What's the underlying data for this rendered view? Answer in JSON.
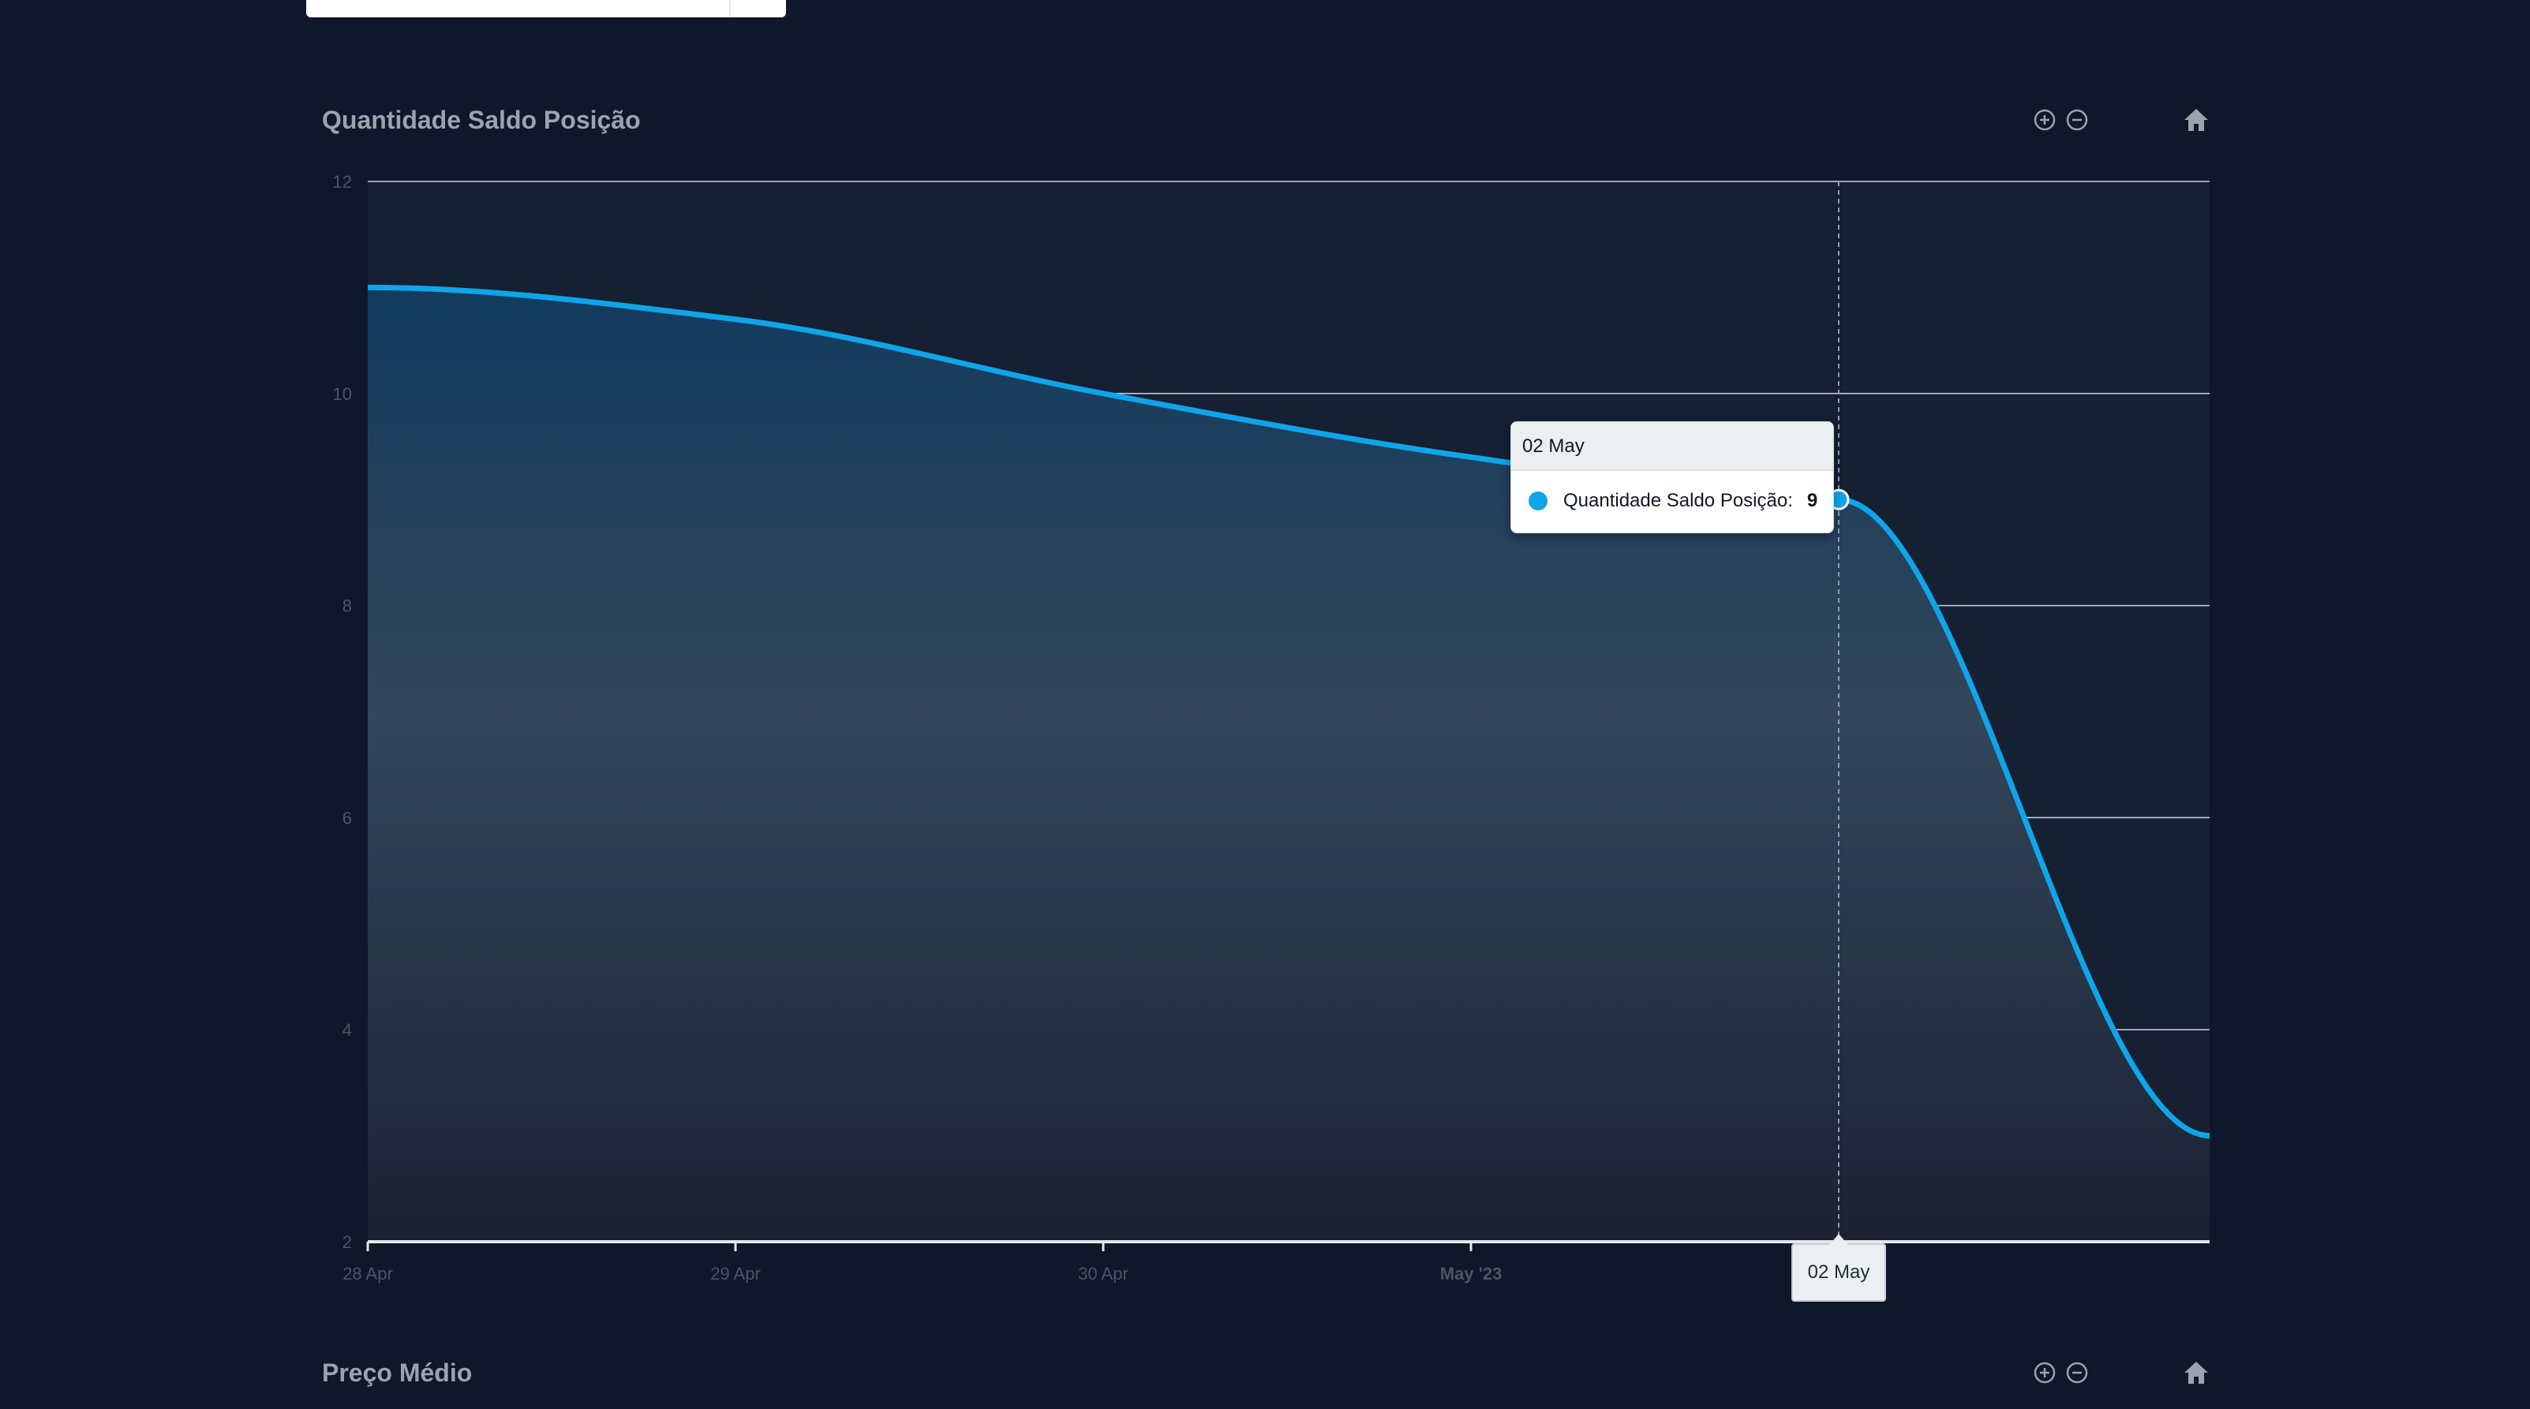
{
  "charts": [
    {
      "title": "Quantidade Saldo Posição",
      "toolbar": {
        "zoom_in_icon": "zoom-in-icon",
        "zoom_out_icon": "zoom-out-icon",
        "reset_icon": "home-icon"
      }
    },
    {
      "title": "Preço Médio",
      "toolbar": {
        "zoom_in_icon": "zoom-in-icon",
        "zoom_out_icon": "zoom-out-icon",
        "reset_icon": "home-icon"
      }
    }
  ],
  "colors": {
    "background": "#0f172a",
    "series": "#0ea5e9",
    "gridline": "#cbd5e1",
    "axis_text": "#4b5563",
    "title": "#9ca3af"
  },
  "chart_data": {
    "type": "area",
    "title": "Quantidade Saldo Posição",
    "xlabel": "",
    "ylabel": "",
    "x": [
      "2023-04-28",
      "2023-04-29",
      "2023-04-30",
      "2023-05-01",
      "2023-05-02",
      "2023-05-03"
    ],
    "x_tick_labels": [
      "28 Apr",
      "29 Apr",
      "30 Apr",
      "May '23",
      ""
    ],
    "y_ticks": [
      2,
      4,
      6,
      8,
      10,
      12
    ],
    "ylim": [
      2,
      12
    ],
    "grid": true,
    "series": [
      {
        "name": "Quantidade Saldo Posição",
        "values": [
          11,
          10.7,
          10,
          9.4,
          9,
          3
        ]
      }
    ],
    "tooltip": {
      "date_label": "02 May",
      "series_label": "Quantidade Saldo Posição:",
      "value": "9"
    },
    "crosshair_label": "02 May"
  }
}
